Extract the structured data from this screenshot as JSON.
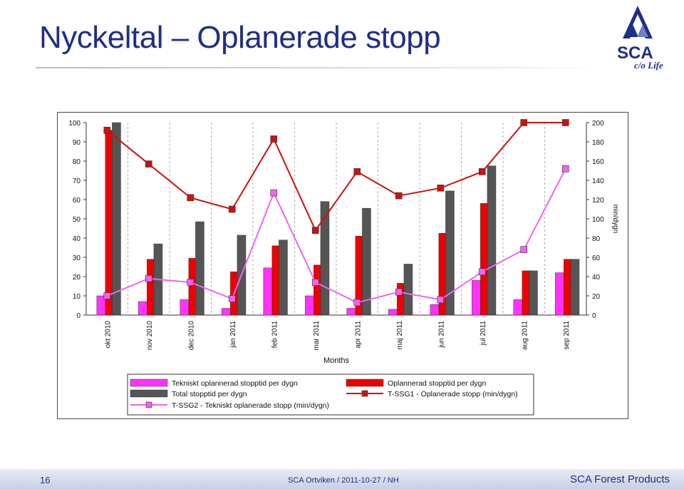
{
  "slide": {
    "title": "Nyckeltal – Oplanerade stopp",
    "logo_text": "SCA",
    "logo_tagline": "c/o Life",
    "page_number": "16",
    "footer_center": "SCA Ortviken / 2011-10-27 / NH",
    "footer_right": "SCA Forest Products"
  },
  "chart_data": {
    "type": "bar",
    "title": "",
    "xlabel": "Months",
    "ylabel": "",
    "y2label": "min/dygn",
    "ylim": [
      0,
      100
    ],
    "y2lim": [
      0,
      200
    ],
    "yticks": [
      0,
      10,
      20,
      30,
      40,
      50,
      60,
      70,
      80,
      90,
      100
    ],
    "y2ticks": [
      0,
      20,
      40,
      60,
      80,
      100,
      120,
      140,
      160,
      180,
      200
    ],
    "categories": [
      "okt 2010",
      "nov 2010",
      "dec 2010",
      "jan 2011",
      "feb 2011",
      "mar 2011",
      "apr 2011",
      "maj 2011",
      "jun 2011",
      "jul 2011",
      "aug 2011",
      "sep 2011"
    ],
    "grid": "vertical dashed",
    "legend_position": "bottom",
    "series": [
      {
        "name": "Tekniskt oplannerad stopptid per dygn",
        "kind": "bar",
        "axis": "left",
        "color": "#ff33ff",
        "values": [
          10,
          7,
          8,
          3.5,
          24.5,
          10,
          3.5,
          3,
          5.5,
          18,
          8,
          22
        ]
      },
      {
        "name": "Oplannerad stopptid per dygn",
        "kind": "bar",
        "axis": "left",
        "color": "#ee0000",
        "values": [
          96,
          29,
          29.5,
          22.5,
          36,
          26,
          41,
          16.5,
          42.5,
          58,
          23,
          29
        ]
      },
      {
        "name": "Total stopptid per dygn",
        "kind": "bar",
        "axis": "left",
        "color": "#555555",
        "values": [
          100,
          37,
          48.5,
          41.5,
          39,
          59,
          55.5,
          26.5,
          64.5,
          77.5,
          23,
          29
        ]
      },
      {
        "name": "T-SSG1 - Oplanerade stopp (min/dygn)",
        "kind": "line",
        "axis": "right",
        "color": "#cc1111",
        "values": [
          192,
          157,
          122,
          110,
          183,
          88,
          149,
          124,
          132,
          149,
          200,
          200
        ]
      },
      {
        "name": "T-SSG2 - Tekniskt oplanerade stopp (min/dygn)",
        "kind": "line",
        "axis": "right",
        "color": "#ee66ee",
        "values": [
          20,
          38,
          34,
          17,
          127,
          34,
          13,
          24,
          16,
          45,
          68,
          152
        ]
      }
    ]
  }
}
